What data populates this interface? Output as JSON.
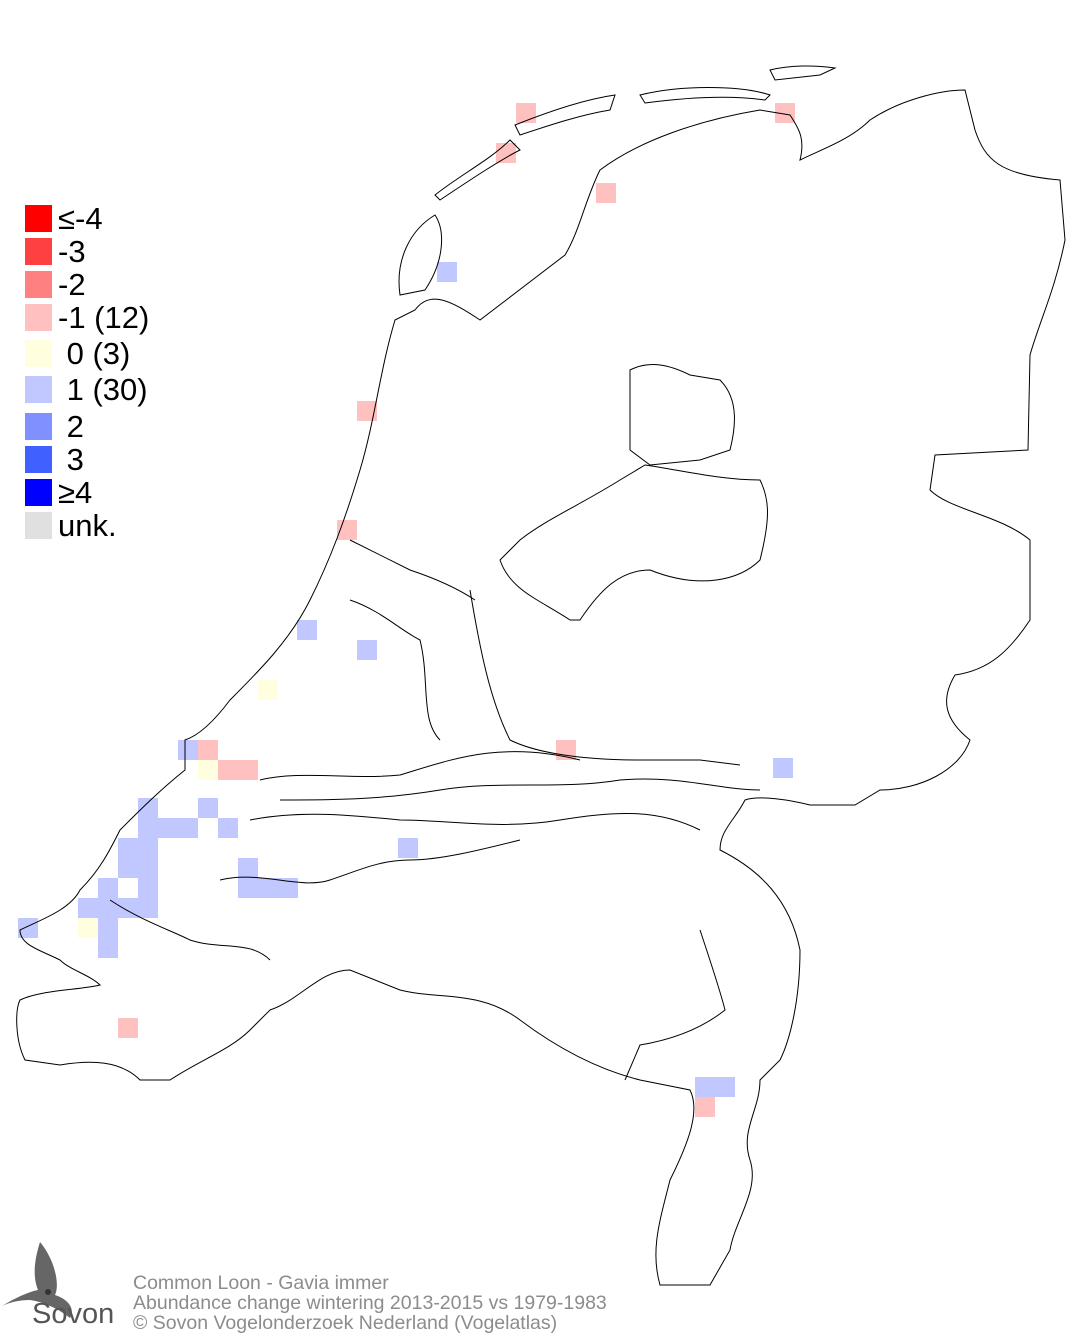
{
  "legend": {
    "items": [
      {
        "label": "≤-4",
        "color": "#ff0000"
      },
      {
        "label": "-3",
        "color": "#ff4040"
      },
      {
        "label": "-2",
        "color": "#ff8080"
      },
      {
        "label": "-1 (12)",
        "color": "#ffc0c0"
      },
      {
        "label": " 0 (3)",
        "color": "#ffffe0"
      },
      {
        "label": " 1 (30)",
        "color": "#c0c8ff"
      },
      {
        "label": " 2",
        "color": "#8090ff"
      },
      {
        "label": " 3",
        "color": "#4060ff"
      },
      {
        "label": "≥4",
        "color": "#0000ff"
      },
      {
        "label": "unk.",
        "color": "#e0e0e0"
      }
    ]
  },
  "footer": {
    "species": "Common Loon - Gavia immer",
    "subtitle": "Abundance change wintering  2013-2015 vs 1979-1983",
    "copyright": "© Sovon Vogelonderzoek Nederland (Vogelatlas)"
  },
  "logo": {
    "text": "Sovon"
  }
}
